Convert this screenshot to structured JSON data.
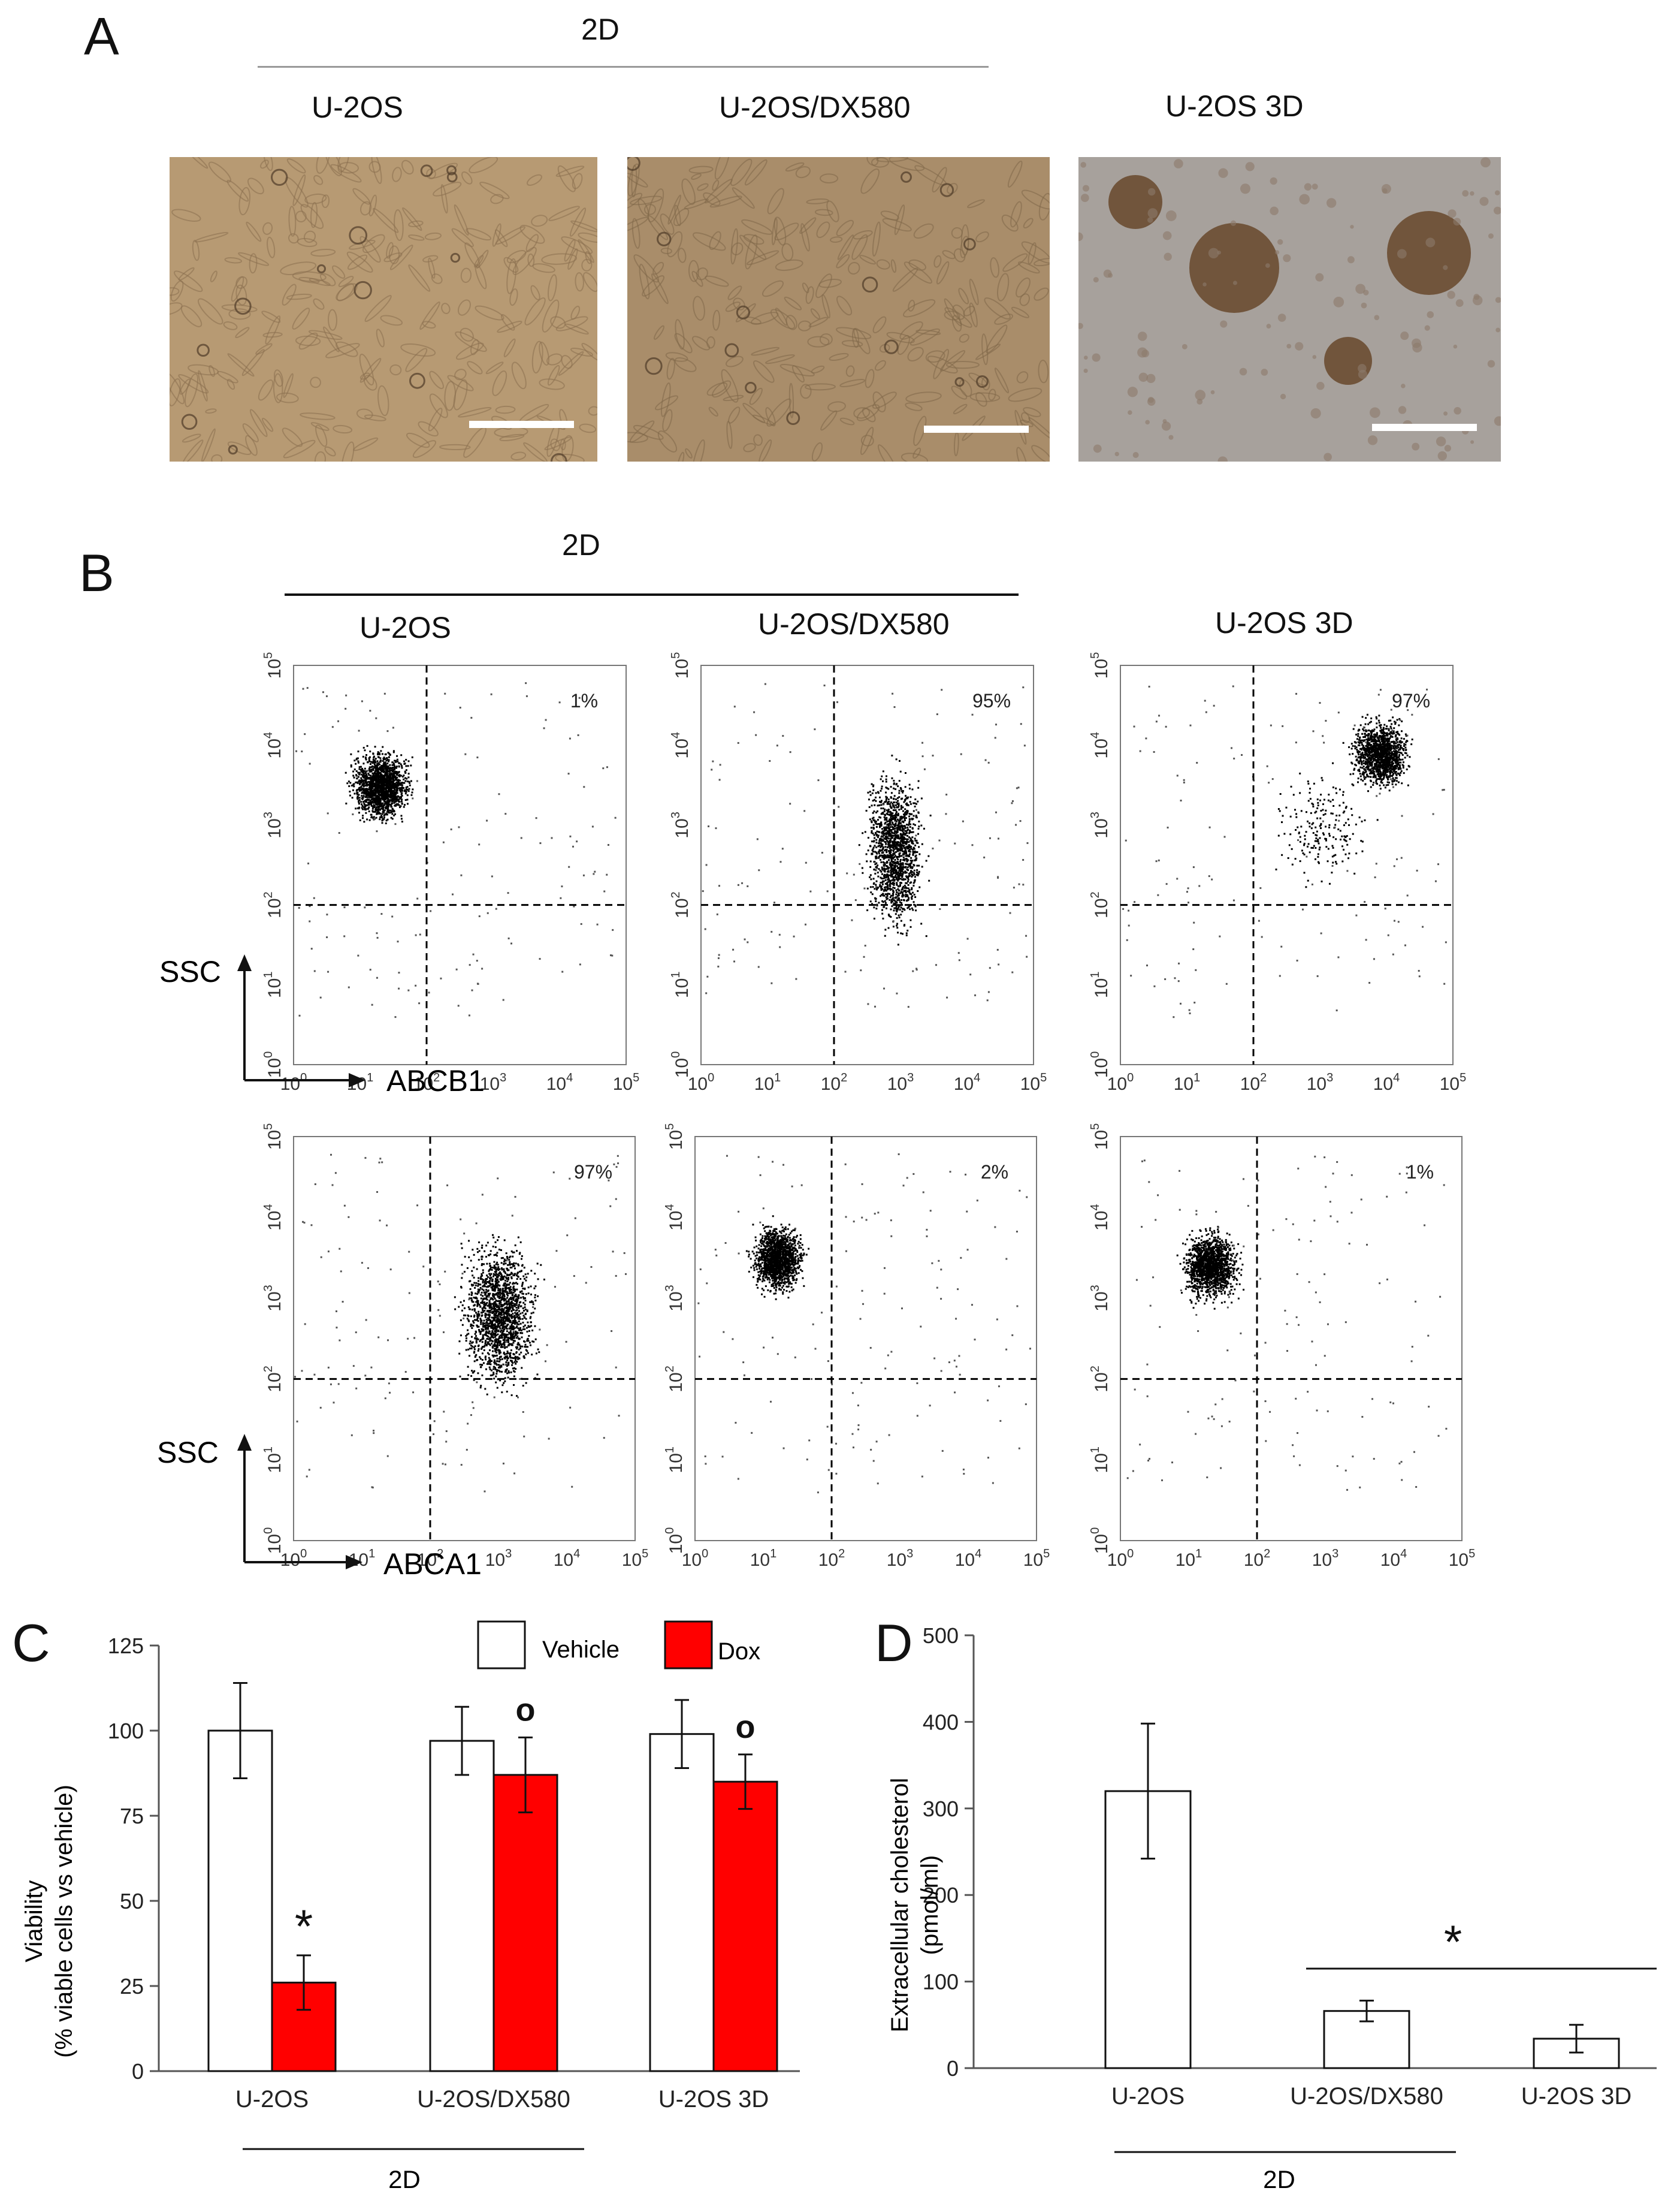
{
  "panels": {
    "a": "A",
    "b": "B",
    "c": "C",
    "d": "D"
  },
  "panel_a": {
    "group_label": "2D",
    "images": [
      {
        "label": "U-2OS",
        "colors": {
          "bg": "#b79a73",
          "cell": "#8a6f4f"
        }
      },
      {
        "label": "U-2OS/DX580",
        "colors": {
          "bg": "#a98d6a",
          "cell": "#7f6749"
        }
      },
      {
        "label": "U-2OS 3D",
        "colors": {
          "bg": "#a7a19c",
          "cell": "#6b4d32"
        }
      }
    ]
  },
  "panel_b": {
    "group_label": "2D",
    "column_labels": [
      "U-2OS",
      "U-2OS/DX580",
      "U-2OS 3D"
    ],
    "axis": {
      "y": "SSC",
      "x_row1": "ABCB1",
      "x_row2": "ABCA1"
    },
    "tick_base": "10",
    "tick_exps": [
      "0",
      "1",
      "2",
      "3",
      "4",
      "5"
    ],
    "plots": [
      {
        "percent": "1%"
      },
      {
        "percent": "95%"
      },
      {
        "percent": "97%"
      },
      {
        "percent": "97%"
      },
      {
        "percent": "2%"
      },
      {
        "percent": "1%"
      }
    ]
  },
  "chart_data": [
    {
      "type": "bar",
      "ylabel_line1": "Viability",
      "ylabel_line2": "(% viable cells vs vehicle)",
      "ylim": [
        0,
        125
      ],
      "yticks": [
        "0",
        "25",
        "50",
        "75",
        "100",
        "125"
      ],
      "categories": [
        "U-2OS",
        "U-2OS/DX580",
        "U-2OS 3D"
      ],
      "group_label": "2D",
      "series": [
        {
          "name": "Vehicle",
          "values": [
            100,
            97,
            99
          ],
          "errors": [
            14,
            10,
            10
          ],
          "color": "#ffffff"
        },
        {
          "name": "Dox",
          "values": [
            26,
            87,
            85
          ],
          "errors": [
            8,
            11,
            8
          ],
          "color": "#ff0000"
        }
      ],
      "annotations": [
        "*",
        "o",
        "o"
      ]
    },
    {
      "type": "bar",
      "ylabel_line1": "Extracellular cholesterol",
      "ylabel_line2": "(pmol/ml)",
      "ylim": [
        0,
        500
      ],
      "yticks": [
        "0",
        "100",
        "200",
        "300",
        "400",
        "500"
      ],
      "categories": [
        "U-2OS",
        "U-2OS/DX580",
        "U-2OS 3D"
      ],
      "values": [
        320,
        66,
        34
      ],
      "errors": [
        78,
        12,
        16
      ],
      "group_label": "2D",
      "annotation": "*"
    }
  ]
}
